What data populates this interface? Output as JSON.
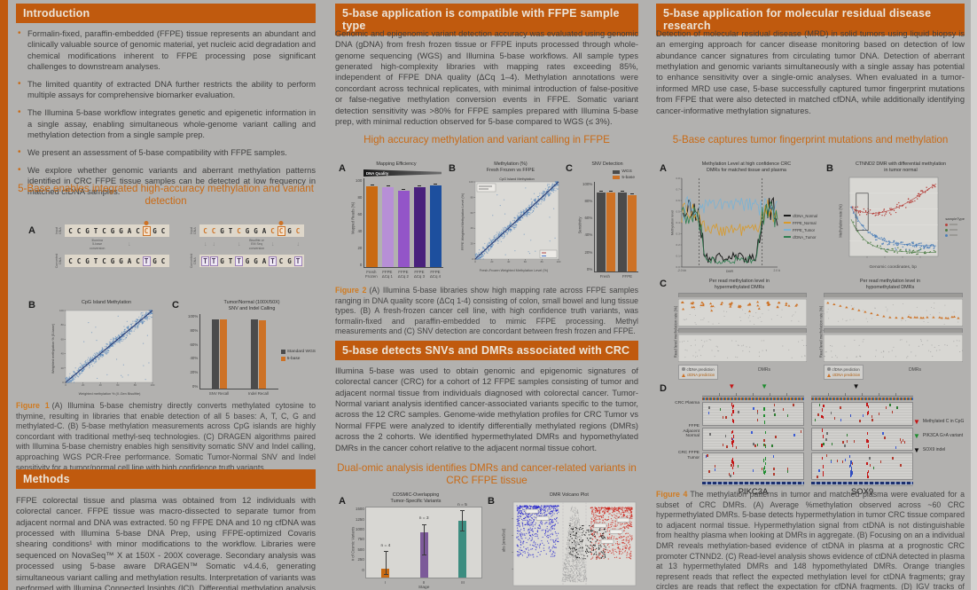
{
  "palette": {
    "page_bg": "#b2b1af",
    "accent_orange": "#c05a0e",
    "accent_text": "#c96a15",
    "header_text": "#ece5da",
    "body_text": "#3e3e3e",
    "caption_lead": "#d07a1f",
    "bar_dark": "#4b4b4b",
    "bar_orange": "#cd7226",
    "purple_light": "#b78fd6",
    "purple_mid": "#9355c8",
    "purple_dark": "#49217c",
    "bar_blue": "#1d4f9e",
    "bar_teal": "#3c8d80",
    "bar_purple": "#7c5a99",
    "scatter_blue": "#4d7fb8",
    "volcano_red": "#cc1a10",
    "volcano_blue": "#1a1acc",
    "line_black": "#1a1a1a",
    "line_orange": "#d89a2a",
    "line_lightblue": "#7ab2d4",
    "line_green": "#2e7d4f",
    "tri_red": "#c41414",
    "tri_green": "#1e8c2e",
    "tri_black": "#111111"
  },
  "col1": {
    "intro": {
      "title": "Introduction",
      "bullets": [
        "Formalin-fixed, paraffin-embedded (FFPE) tissue represents an abundant and clinically valuable source of genomic material, yet nucleic acid degradation and chemical modifications inherent to FFPE processing pose significant challenges to downstream analyses.",
        "The limited quantity of extracted DNA further restricts the ability to perform multiple assays for comprehensive biomarker evaluation.",
        "The Illumina 5-base workflow integrates genetic and epigenetic information in a single assay, enabling simultaneous whole-genome variant calling and methylation detection from a single sample prep.",
        "We present an assessment of 5-base compatibility with FFPE samples.",
        "We explore whether genomic variants and aberrant methylation patterns identified in CRC FFPE tissue samples can be detected at low frequency in matched cfDNA samples."
      ]
    },
    "subhead": "5-Base enables integrated high-accuracy methylation and variant detection",
    "fig1": {
      "a_label": "A",
      "b_label": "B",
      "c_label": "C",
      "seq_left": {
        "input_label": "Input\nDNA",
        "converted_label": "Converted\nDNA",
        "input": "CCGTCGGACCGC",
        "converted": "CCGTCGGACTGC",
        "hi": 9,
        "boxed_conv": [
          9
        ],
        "arrow_glyph": "↓",
        "arrow_label": "Illumina\n5-base\nconversion"
      },
      "seq_right": {
        "input_label": "Input\nDNA",
        "converted_label": "Converted\nDNA",
        "input": "CCGTCGGACCGC",
        "converted": "TTGTTGGATCGT",
        "hi": 9,
        "orange_c": true,
        "multi_arrows": true,
        "boxed_conv": [
          0,
          1,
          4,
          8,
          11
        ],
        "arrow_glyph": "↓",
        "arrow_label": "Bisulfite or\nEM Seq\nconversion"
      },
      "caption_lead": "Figure 1",
      "caption": "(A) Illumina 5-base chemistry directly converts methylated cytosine to thymine, resulting in libraries that enable detection of all 5 bases: A, T, C, G and methylated-C. (B) 5-base methylation measurements across CpG islands are highly concordant with traditional methyl-seq technologies. (C) DRAGEN algorithms paired with Illumina 5-base chemistry enables high sensitivity somatic SNV and Indel calling, approaching WGS PCR-Free performance. Somatic Tumor-Normal SNV and Indel sensitivity for a tumor/normal cell line with high confidence truth variants."
    },
    "methods": {
      "title": "Methods",
      "body": "FFPE colorectal tissue and plasma was obtained from 12 individuals with colorectal cancer. FFPE tissue was macro-dissected to separate tumor from adjacent normal and DNA was extracted. 50 ng FFPE DNA and 10 ng cfDNA was processed with Illumina 5-base DNA Prep, using FFPE-optimized Covaris shearing conditions¹ with minor modifications to the workflow. Libraries were sequenced on NovaSeq™ X at 150X - 200X coverage. Secondary analysis was processed using 5-base aware DRAGEN™ Somatic v4.4.6, generating simultaneous variant calling and methylation results. Interpretation of variants was performed with Illumina Connected Insights (ICI). Differential methylation analysis was performed with"
    }
  },
  "col2": {
    "header1": "5-base application is compatible with FFPE sample type",
    "para1": "Genomic and epigenomic variant detection accuracy was evaluated using genomic DNA (gDNA) from fresh frozen tissue or FFPE inputs processed through whole-genome sequencing (WGS) and Illumina 5-base workflows. All sample types generated high-complexity libraries with mapping rates exceeding 85%, independent of FFPE DNA quality (ΔCq 1–4). Methylation annotations were concordant across technical replicates, with minimal introduction of false-positive or false-negative methylation conversion events in FFPE. Somatic variant detection sensitivity was >80% for FFPE samples prepared with Illumina 5-base prep, with minimal reduction observed for 5-base compared to WGS (≤ 3%).",
    "subhead1": "High accuracy methylation and variant calling in FFPE",
    "fig2": {
      "a_label": "A",
      "b_label": "B",
      "c_label": "C",
      "caption_lead": "Figure 2",
      "caption": "(A) Illumina 5-base libraries show high mapping rate across FFPE samples ranging in DNA quality score (ΔCq 1-4) consisting of colon, small bowel and lung tissue types. (B) A fresh-frozen cancer cell line, with high confidence truth variants, was formalin-fixed and paraffin-embedded to mimic FFPE processing. Methyl measurements and (C) SNV detection are concordant between fresh frozen and FFPE."
    },
    "header2": "5-base detects SNVs and DMRs associated with CRC",
    "para2": "Illumina 5-base was used to obtain genomic and epigenomic signatures of colorectal cancer (CRC) for a cohort of 12 FFPE samples consisting of tumor and adjacent normal tissue from individuals diagnosed with colorectal cancer. Tumor-Normal variant analysis identified cancer-associated variants specific to the tumor, across the 12 CRC samples. Genome-wide methylation profiles for CRC Tumor vs Normal FFPE were analyzed to identify differentially methylated regions (DMRs) across the 2 cohorts. We identified hypermethylated DMRs and hypomethylated DMRs in the cancer cohort relative to the adjacent normal tissue cohort.",
    "subhead2": "Dual-omic analysis identifies DMRs and cancer-related variants in CRC FFPE tissue",
    "fig3": {
      "a_label": "A",
      "b_label": "B"
    }
  },
  "col3": {
    "header": "5-base application for molecular residual disease research",
    "para": "Detection of molecular residual disease (MRD) in solid tumors using liquid biopsy is an emerging approach for cancer disease monitoring based on detection of low abundance cancer signatures from circulating tumor DNA. Detection of aberrant methylation and genomic variants simultaneously with a single assay has potential to enhance sensitivity over a single-omic analyses. When evaluated in a tumor-informed MRD use case, 5-base successfully captured tumor fingerprint mutations from FFPE that were also detected in matched cfDNA, while additionally identifying cancer-informative methylation signatures.",
    "subhead": "5-Base captures tumor fingerprint mutations and methylation",
    "fig4": {
      "a_label": "A",
      "b_label": "B",
      "c_label": "C",
      "d_label": "D",
      "caption_lead": "Figure 4",
      "caption": "The methylation patterns in tumor and matched plasma were evaluated for a subset of CRC DMRs. (A) Average %methylation observed across ~60 CRC hypermethylated DMRs. 5-base detects hypermethylation in tumor CRC tissue compared to adjacent normal tissue. Hypermethylation signal from ctDNA is not distinguishable from healthy plasma when looking at DMRs in aggregate. (B) Focusing on an a individual DMR reveals methylation-based evidence of ctDNA in plasma at a prognostic CRC promoter CTNND2. (C) Read-level analysis shows evidence of ctDNA detected in plasma at 13 hypermethylated DMRs and 148 hypomethylated DMRs. Orange triangles represent reads that reflect the expected methylation level for ctDNA fragments; gray circles are reads that reflect the expectation for cfDNA fragments. (D) IGV tracks of matched FFPE CRC tumor,"
    }
  },
  "chart_data": [
    {
      "id": "fig1b",
      "type": "scatter",
      "title": "CpG Island Methylation",
      "xlabel": "Weighted methylation % (X-Gen Bisulfite)",
      "ylabel": "Weighted methylation % (5-base)",
      "xlim": [
        0,
        100
      ],
      "ylim": [
        0,
        100
      ],
      "point_color": "#4d7fb8",
      "trend": "y=x"
    },
    {
      "id": "fig1c",
      "type": "bar",
      "title": "Tumor/Normal (100X/50X)\nSNV and Indel Calling",
      "categories": [
        "SNV Recall",
        "Indel Recall"
      ],
      "series": [
        {
          "name": "Standard WGS",
          "color": "#4b4b4b",
          "values": [
            93,
            93
          ]
        },
        {
          "name": "5-base",
          "color": "#cd7226",
          "values": [
            93,
            92
          ]
        }
      ],
      "ylim": [
        0,
        100
      ],
      "yticks": [
        "0%",
        "20%",
        "40%",
        "60%",
        "80%",
        "100%"
      ],
      "legend_position": "right"
    },
    {
      "id": "fig2a",
      "type": "bar",
      "title": "Mapping Efficiency",
      "banner": "DNA Quality",
      "ylabel": "Mapped Reads (%)",
      "categories": [
        "Fresh\nFrozen",
        "FFPE\nΔCq 1",
        "FFPE\nΔCq 2",
        "FFPE\nΔCq 3",
        "FFPE\nΔCq 4"
      ],
      "values": [
        91,
        90,
        86,
        90,
        92
      ],
      "bar_colors": [
        "#c96a12",
        "#b78fd6",
        "#9355c8",
        "#49217c",
        "#1d4f9e"
      ],
      "ylim": [
        0,
        100
      ],
      "yticks": [
        "0",
        "20",
        "40",
        "60",
        "80",
        "100"
      ],
      "error": 2
    },
    {
      "id": "fig2b",
      "type": "scatter",
      "suptitle": "Methylation (%)\nFresh Frozen vs FFPE",
      "title": "CpG Island Methylation",
      "xlabel": "Fresh-Frozen Weighted Methylation Level (%)",
      "ylabel": "FFPE Weighted Methylation Level (%)",
      "xlim": [
        0,
        100
      ],
      "ylim": [
        0,
        100
      ],
      "point_color": "#4d7fb8",
      "inset": true,
      "minileg": true
    },
    {
      "id": "fig2c",
      "type": "bar",
      "title": "SNV Detection",
      "ylabel": "Sensitivity",
      "categories": [
        "Fresh",
        "FFPE"
      ],
      "series": [
        {
          "name": "WGS",
          "color": "#4b4b4b",
          "values": [
            88,
            88
          ]
        },
        {
          "name": "5-base",
          "color": "#cd7226",
          "values": [
            88,
            85
          ]
        }
      ],
      "ylim": [
        0,
        100
      ],
      "yticks": [
        "0%",
        "20%",
        "40%",
        "60%",
        "80%",
        "100%"
      ],
      "legend_position": "top",
      "error": 1.5
    },
    {
      "id": "fig3a",
      "type": "bar",
      "title": "COSMIC-Overlapping\nTumor-Specific Variants",
      "ylabel": "# of Cosmic Variants",
      "xlabel": "Stage",
      "categories": [
        "I",
        "II",
        "III"
      ],
      "values": [
        200,
        975,
        1225
      ],
      "bar_colors": [
        "#c96a12",
        "#7c5a99",
        "#3c8d80"
      ],
      "n_labels": [
        "n = 4",
        "n = 3",
        "n = 5"
      ],
      "error_ranges": [
        [
          60,
          575
        ],
        [
          480,
          1150
        ],
        [
          1000,
          1450
        ]
      ],
      "ylim": [
        0,
        1500
      ],
      "yticks": [
        "0",
        "250",
        "500",
        "750",
        "1000",
        "1250",
        "1500"
      ],
      "panel": true
    },
    {
      "id": "fig3b",
      "type": "volcano",
      "title": "DMR Volcano Plot",
      "ylabel": "abs (areaStat)",
      "colors": {
        "hypo": "#1a1acc",
        "hyper": "#cc1a10",
        "ns": "#9a9a9a",
        "highlight": "#1a1a1a"
      }
    },
    {
      "id": "fig4a",
      "type": "line",
      "title": "Methylation Level at high confidence CRC\nDMRs for matched tissue and plasma",
      "ylabel": "Methylation level",
      "xlabel": "DMR",
      "x_edge_labels": [
        "-2.0 kb",
        "2.0 kb"
      ],
      "ylim": [
        0,
        0.8
      ],
      "series": [
        {
          "name": "cfDNA_Normal",
          "color": "#1a1a1a"
        },
        {
          "name": "FFPE_Normal",
          "color": "#d89a2a"
        },
        {
          "name": "FFPE_Tumor",
          "color": "#7ab2d4"
        },
        {
          "name": "cfDNA_Tumor",
          "color": "#2e7d4f"
        }
      ]
    },
    {
      "id": "fig4b",
      "type": "scatter-groups",
      "title": "CTNND2 DMR with differential methylation\nin tumor normal",
      "ylabel": "Methylation rate (%)",
      "xlabel": "Genomic coordinates, bp",
      "legend_title": "sampleType",
      "colors": [
        "#b5413c",
        "#4e7d46",
        "#4d7fb8"
      ]
    },
    {
      "id": "fig4c_hyper",
      "type": "readlevel",
      "mode": "hyper",
      "title": "Per read methylation level in\nhypermethylated DMRs",
      "ylabel": "Read level methylation rate (%)",
      "xlabel": "DMRs",
      "legend": [
        {
          "label": "cfDNA prediction",
          "color": "#8a8a8a",
          "marker": "circle"
        },
        {
          "label": "ctDNA prediction",
          "color": "#cd7226",
          "marker": "triangle"
        }
      ]
    },
    {
      "id": "fig4c_hypo",
      "type": "readlevel",
      "mode": "hypo",
      "title": "Per read methylation level in\nhypomethylated DMRs",
      "ylabel": "Read level methylation rate (%)",
      "xlabel": "DMRs",
      "legend": [
        {
          "label": "cfDNA prediction",
          "color": "#8a8a8a",
          "marker": "circle"
        },
        {
          "label": "ctDNA prediction",
          "color": "#cd7226",
          "marker": "triangle"
        }
      ]
    },
    {
      "id": "fig4d",
      "type": "igv",
      "marker_glyph": "▼",
      "rows": [
        "CRC Plasma",
        "FFPE\nAdjacent\nNormal",
        "CRC FFPE\nTumor"
      ],
      "genes": [
        "PIKC3A",
        "SOX9"
      ],
      "legend": [
        {
          "label": "Methylated C in CpG",
          "color": "#c41414"
        },
        {
          "label": "PIK3CA G>A variant",
          "color": "#1e8c2e"
        },
        {
          "label": "SOX9 indel",
          "color": "#111111"
        }
      ]
    }
  ]
}
